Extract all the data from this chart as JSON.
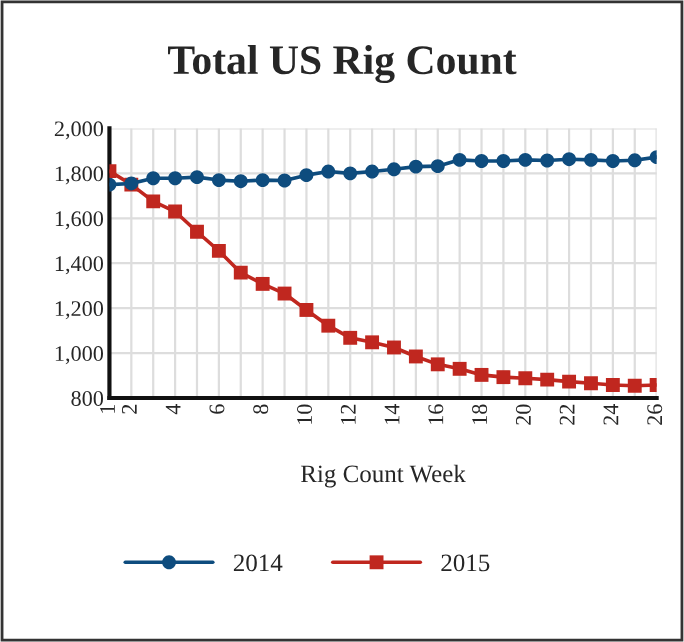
{
  "chart_data": {
    "type": "line",
    "title": "Total US Rig Count",
    "xlabel": "Rig Count Week",
    "x": [
      1,
      2,
      3,
      4,
      5,
      6,
      7,
      8,
      9,
      10,
      11,
      12,
      13,
      14,
      15,
      16,
      17,
      18,
      19,
      20,
      21,
      22,
      23,
      24,
      25,
      26
    ],
    "series": [
      {
        "name": "2014",
        "color": "#0e4c7e",
        "marker": "circle",
        "values": [
          1750,
          1755,
          1778,
          1778,
          1783,
          1770,
          1765,
          1770,
          1768,
          1792,
          1808,
          1800,
          1808,
          1818,
          1830,
          1832,
          1860,
          1855,
          1855,
          1860,
          1857,
          1863,
          1860,
          1855,
          1858,
          1872
        ]
      },
      {
        "name": "2015",
        "color": "#c0271f",
        "marker": "square",
        "values": [
          1810,
          1750,
          1675,
          1630,
          1540,
          1455,
          1358,
          1308,
          1265,
          1192,
          1122,
          1068,
          1048,
          1025,
          985,
          950,
          930,
          903,
          893,
          888,
          882,
          873,
          866,
          858,
          855,
          858
        ]
      }
    ],
    "xlim": [
      1,
      26
    ],
    "xticks": [
      1,
      2,
      {
        "value": 3,
        "label": null
      },
      4,
      {
        "value": 5,
        "label": null
      },
      6,
      {
        "value": 7,
        "label": null
      },
      8,
      {
        "value": 9,
        "label": null
      },
      10,
      {
        "value": 11,
        "label": null
      },
      12,
      {
        "value": 13,
        "label": null
      },
      14,
      {
        "value": 15,
        "label": null
      },
      16,
      {
        "value": 17,
        "label": null
      },
      18,
      {
        "value": 19,
        "label": null
      },
      20,
      {
        "value": 21,
        "label": null
      },
      22,
      {
        "value": 23,
        "label": null
      },
      24,
      {
        "value": 25,
        "label": null
      },
      26
    ],
    "ylim": [
      800,
      2000
    ],
    "yticks": [
      {
        "value": 800,
        "label": "800"
      },
      {
        "value": 1000,
        "label": "1,000"
      },
      {
        "value": 1200,
        "label": "1,200"
      },
      {
        "value": 1400,
        "label": "1,400"
      },
      {
        "value": 1600,
        "label": "1,600"
      },
      {
        "value": 1800,
        "label": "1,800"
      },
      {
        "value": 2000,
        "label": "2,000"
      }
    ],
    "grid": true,
    "legend": "bottom",
    "line_style": "solid"
  }
}
